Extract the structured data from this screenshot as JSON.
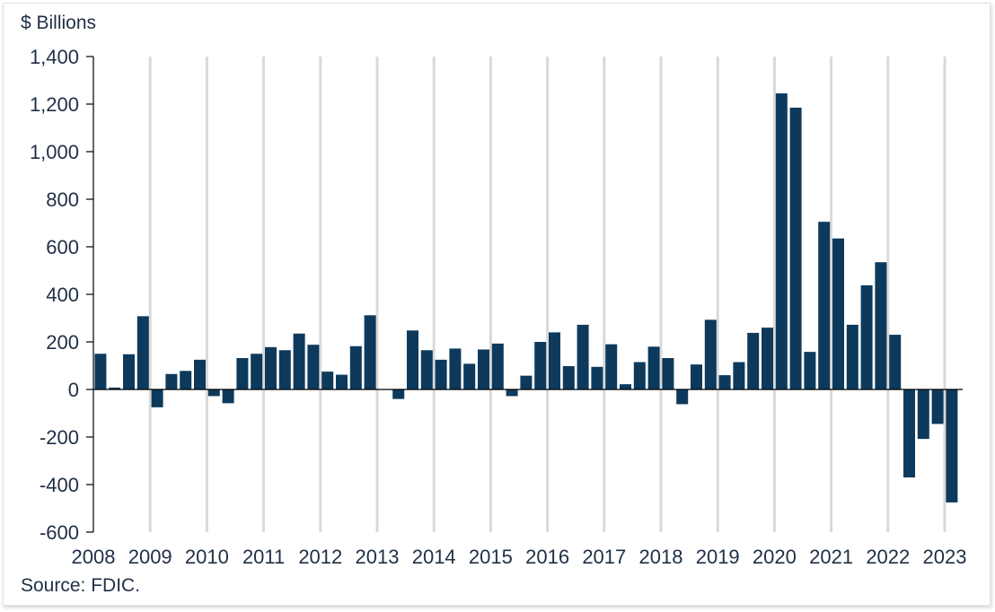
{
  "chart_data": {
    "type": "bar",
    "ylabel": "$ Billions",
    "source": "Source: FDIC.",
    "ylim": [
      -600,
      1400
    ],
    "yticks": [
      1400,
      1200,
      1000,
      800,
      600,
      400,
      200,
      0,
      -200,
      -400,
      -600
    ],
    "ytick_labels": [
      "1,400",
      "1,200",
      "1,000",
      "800",
      "600",
      "400",
      "200",
      "0",
      "-200",
      "-400",
      "-600"
    ],
    "year_labels": [
      "2008",
      "2009",
      "2010",
      "2011",
      "2012",
      "2013",
      "2014",
      "2015",
      "2016",
      "2017",
      "2018",
      "2019",
      "2020",
      "2021",
      "2022",
      "2023"
    ],
    "quarters_per_year": 4,
    "vertical_gridlines": true,
    "bar_color": "#0d3a5c",
    "grid_color": "#d9d9d9",
    "values": [
      150,
      8,
      148,
      308,
      -75,
      65,
      78,
      125,
      -28,
      -58,
      132,
      150,
      178,
      165,
      235,
      188,
      75,
      62,
      182,
      312,
      2,
      -40,
      248,
      165,
      125,
      172,
      108,
      168,
      193,
      -28,
      58,
      200,
      240,
      98,
      272,
      95,
      190,
      22,
      115,
      180,
      132,
      -62,
      105,
      293,
      60,
      115,
      238,
      260,
      1245,
      1185,
      158,
      705,
      635,
      272,
      438,
      535,
      230,
      -370,
      -208,
      -145,
      -475
    ]
  }
}
